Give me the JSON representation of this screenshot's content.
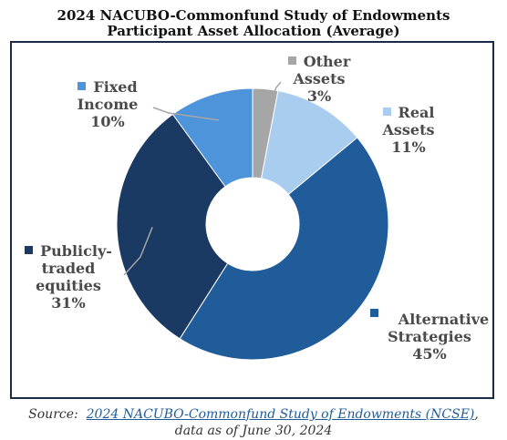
{
  "title_line1": "2024 NACUBO-Commonfund Study of Endowments",
  "title_line2": "Participant Asset Allocation (Average)",
  "source": {
    "prefix": "Source:",
    "link_text": "2024 NACUBO-Commonfund Study of Endowments (NCSE)",
    "suffix": ",",
    "line2": "data as of June 30, 2024"
  },
  "labels": {
    "other": {
      "line1": "Other",
      "line2": "Assets",
      "pct": "3%"
    },
    "real": {
      "line1": "Real",
      "line2": "Assets",
      "pct": "11%"
    },
    "alt": {
      "line1": "Alternative",
      "line2": "Strategies",
      "pct": "45%"
    },
    "public": {
      "line1": "Publicly-",
      "line2": "traded",
      "line3": "equities",
      "pct": "31%"
    },
    "fixed": {
      "line1": "Fixed",
      "line2": "Income",
      "pct": "10%"
    }
  },
  "chart_data": {
    "type": "pie",
    "donut": true,
    "start": "12 o'clock, clockwise",
    "series": [
      {
        "name": "Other Assets",
        "value": 3,
        "color": "#a6a6a6"
      },
      {
        "name": "Real Assets",
        "value": 11,
        "color": "#a9cdef"
      },
      {
        "name": "Alternative Strategies",
        "value": 45,
        "color": "#1f5c99"
      },
      {
        "name": "Publicly-traded equities",
        "value": 31,
        "color": "#1a3a63"
      },
      {
        "name": "Fixed Income",
        "value": 10,
        "color": "#4d94db"
      }
    ],
    "legend": "data labels beside slices"
  }
}
